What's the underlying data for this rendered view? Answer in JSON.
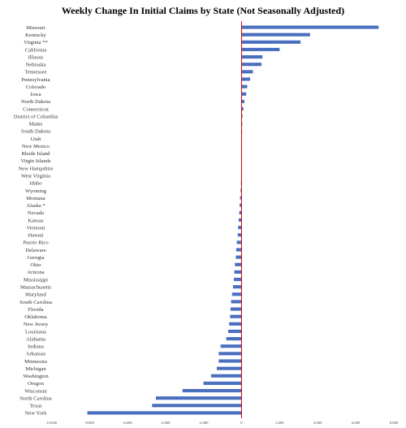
{
  "chart_data": {
    "type": "bar",
    "orientation": "horizontal",
    "title": "Weekly Change In Initial Claims by State (Not Seasonally Adjusted)",
    "xlabel": "",
    "ylabel": "",
    "xlim": [
      -10000,
      8000
    ],
    "ticks": [
      -10000,
      -8000,
      -6000,
      -4000,
      -2000,
      0,
      2000,
      4000,
      6000,
      8000
    ],
    "tick_labels": [
      "-10,000",
      "-8,000",
      "-6,000",
      "-4,000",
      "-2,000",
      "0",
      "2,000",
      "4,000",
      "6,000",
      "8,000"
    ],
    "grid": false,
    "legend": "none",
    "colors": {
      "bar": "#4a6fbf",
      "zero_line": "#cc0000"
    },
    "categories": [
      "Missouri",
      "Kentucky",
      "Virginia **",
      "California",
      "Illinois",
      "Nebraska",
      "Tennessee",
      "Pennsylvania",
      "Colorado",
      "Iowa",
      "North Dakota",
      "Connecticut",
      "District of Columbia",
      "Maine",
      "South Dakota",
      "Utah",
      "New Mexico",
      "Rhode Island",
      "Virgin Islands",
      "New Hampshire",
      "West Virginia",
      "Idaho",
      "Wyoming",
      "Montana",
      "Alaska *",
      "Nevada",
      "Kansas",
      "Vermont",
      "Hawaii",
      "Puerto Rico",
      "Delaware",
      "Georgia",
      "Ohio",
      "Arizona",
      "Mississippi",
      "Massachusetts",
      "Maryland",
      "South Carolina",
      "Florida",
      "Oklahoma",
      "New Jersey",
      "Louisiana",
      "Alabama",
      "Indiana",
      "Arkansas",
      "Minnesota",
      "Michigan",
      "Washington",
      "Oregon",
      "Wisconsin",
      "North Carolina",
      "Texas",
      "New York"
    ],
    "values": [
      7200,
      3600,
      3100,
      2000,
      1100,
      1050,
      600,
      450,
      300,
      250,
      150,
      100,
      50,
      40,
      30,
      20,
      10,
      5,
      0,
      -10,
      -20,
      -30,
      -50,
      -80,
      -100,
      -120,
      -150,
      -180,
      -200,
      -250,
      -280,
      -300,
      -350,
      -380,
      -400,
      -450,
      -500,
      -550,
      -580,
      -600,
      -650,
      -700,
      -800,
      -1100,
      -1200,
      -1200,
      -1300,
      -1600,
      -2000,
      -3100,
      -4500,
      -4700,
      -8100
    ]
  }
}
